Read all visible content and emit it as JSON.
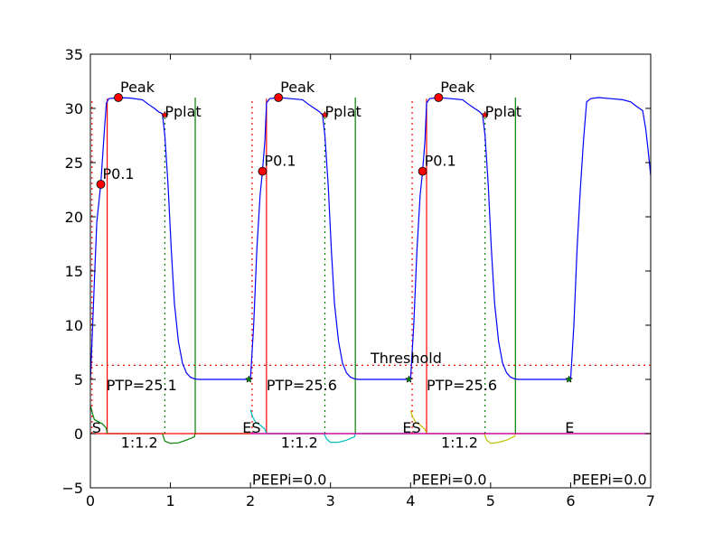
{
  "chart_data": {
    "type": "line",
    "xlim": [
      0,
      7
    ],
    "ylim": [
      -5,
      35
    ],
    "x_ticks": [
      0,
      1,
      2,
      3,
      4,
      5,
      6,
      7
    ],
    "y_ticks": [
      -5,
      0,
      5,
      10,
      15,
      20,
      25,
      30,
      35
    ],
    "grid": false,
    "threshold": {
      "y": 6.3,
      "label": "Threshold",
      "color": "#ff0000"
    },
    "colors": {
      "pressure": "#0000ff",
      "inspiration": "#ff0000",
      "expiration": "#008000",
      "flow_1": "#008000",
      "flow_2": "#00bfbf",
      "flow_3": "#bfbf00",
      "flow_zero_1": "#ff0000",
      "flow_zero_2": "#bf00bf",
      "marker_point": "#ff0000",
      "marker_star": "#008000"
    },
    "pressure": [
      [
        0.0,
        4.9
      ],
      [
        0.02,
        8.5
      ],
      [
        0.05,
        14.0
      ],
      [
        0.08,
        19.5
      ],
      [
        0.13,
        23.0
      ],
      [
        0.17,
        27.5
      ],
      [
        0.2,
        30.5
      ],
      [
        0.23,
        30.9
      ],
      [
        0.35,
        31.0
      ],
      [
        0.5,
        30.95
      ],
      [
        0.65,
        30.8
      ],
      [
        0.72,
        30.4
      ],
      [
        0.8,
        30.0
      ],
      [
        0.85,
        29.7
      ],
      [
        0.9,
        29.5
      ],
      [
        0.93,
        27.5
      ],
      [
        0.97,
        23.0
      ],
      [
        1.01,
        17.0
      ],
      [
        1.05,
        12.0
      ],
      [
        1.1,
        8.5
      ],
      [
        1.15,
        6.5
      ],
      [
        1.2,
        5.6
      ],
      [
        1.25,
        5.2
      ],
      [
        1.3,
        5.05
      ],
      [
        1.35,
        5.0
      ],
      [
        1.98,
        5.0
      ],
      [
        2.0,
        5.0
      ],
      [
        2.04,
        10.0
      ],
      [
        2.08,
        17.0
      ],
      [
        2.12,
        22.0
      ],
      [
        2.15,
        24.2
      ],
      [
        2.18,
        27.0
      ],
      [
        2.2,
        30.5
      ],
      [
        2.24,
        30.9
      ],
      [
        2.35,
        31.0
      ],
      [
        2.5,
        30.9
      ],
      [
        2.65,
        30.8
      ],
      [
        2.72,
        30.4
      ],
      [
        2.8,
        30.0
      ],
      [
        2.86,
        29.7
      ],
      [
        2.9,
        29.4
      ],
      [
        2.93,
        27.5
      ],
      [
        2.97,
        23.0
      ],
      [
        3.01,
        17.0
      ],
      [
        3.05,
        12.0
      ],
      [
        3.1,
        8.5
      ],
      [
        3.15,
        6.5
      ],
      [
        3.2,
        5.6
      ],
      [
        3.25,
        5.2
      ],
      [
        3.3,
        5.05
      ],
      [
        3.35,
        5.0
      ],
      [
        3.98,
        5.0
      ],
      [
        4.0,
        5.0
      ],
      [
        4.04,
        10.0
      ],
      [
        4.08,
        17.0
      ],
      [
        4.12,
        22.0
      ],
      [
        4.15,
        24.2
      ],
      [
        4.18,
        27.0
      ],
      [
        4.2,
        30.5
      ],
      [
        4.24,
        30.9
      ],
      [
        4.35,
        31.0
      ],
      [
        4.5,
        30.9
      ],
      [
        4.65,
        30.8
      ],
      [
        4.72,
        30.4
      ],
      [
        4.8,
        30.0
      ],
      [
        4.86,
        29.7
      ],
      [
        4.9,
        29.4
      ],
      [
        4.93,
        27.5
      ],
      [
        4.97,
        23.0
      ],
      [
        5.01,
        17.0
      ],
      [
        5.05,
        12.0
      ],
      [
        5.1,
        8.5
      ],
      [
        5.15,
        6.5
      ],
      [
        5.2,
        5.6
      ],
      [
        5.25,
        5.2
      ],
      [
        5.3,
        5.05
      ],
      [
        5.35,
        5.0
      ],
      [
        5.98,
        5.0
      ],
      [
        6.0,
        5.0
      ],
      [
        6.04,
        10.0
      ],
      [
        6.08,
        17.0
      ],
      [
        6.12,
        22.5
      ],
      [
        6.16,
        27.0
      ],
      [
        6.2,
        30.6
      ],
      [
        6.25,
        30.9
      ],
      [
        6.35,
        31.0
      ],
      [
        6.5,
        30.9
      ],
      [
        6.65,
        30.8
      ],
      [
        6.75,
        30.6
      ],
      [
        6.82,
        30.2
      ],
      [
        6.9,
        29.8
      ],
      [
        6.94,
        28.0
      ],
      [
        6.97,
        26.0
      ],
      [
        7.0,
        23.8
      ]
    ],
    "flows": [
      {
        "color_key": "flow_1",
        "points": [
          [
            0.0,
            2.6
          ],
          [
            0.02,
            2.0
          ],
          [
            0.05,
            1.3
          ],
          [
            0.1,
            1.1
          ],
          [
            0.15,
            0.9
          ],
          [
            0.2,
            0.5
          ],
          [
            0.21,
            0.0
          ],
          [
            0.9,
            0.0
          ],
          [
            0.93,
            -0.7
          ],
          [
            1.0,
            -0.9
          ],
          [
            1.1,
            -0.85
          ],
          [
            1.2,
            -0.6
          ],
          [
            1.3,
            -0.3
          ],
          [
            1.31,
            0.0
          ],
          [
            2.0,
            0.0
          ]
        ]
      },
      {
        "color_key": "flow_2",
        "points": [
          [
            2.0,
            2.2
          ],
          [
            2.03,
            1.5
          ],
          [
            2.07,
            1.0
          ],
          [
            2.12,
            0.8
          ],
          [
            2.18,
            0.4
          ],
          [
            2.2,
            0.0
          ],
          [
            2.92,
            0.0
          ],
          [
            2.95,
            -0.5
          ],
          [
            3.0,
            -0.8
          ],
          [
            3.1,
            -0.8
          ],
          [
            3.2,
            -0.6
          ],
          [
            3.3,
            -0.3
          ],
          [
            3.31,
            0.0
          ],
          [
            4.0,
            0.0
          ]
        ]
      },
      {
        "color_key": "flow_3",
        "points": [
          [
            4.0,
            2.1
          ],
          [
            4.03,
            1.5
          ],
          [
            4.07,
            1.0
          ],
          [
            4.12,
            0.8
          ],
          [
            4.18,
            0.4
          ],
          [
            4.2,
            0.0
          ],
          [
            4.92,
            0.0
          ],
          [
            4.95,
            -0.6
          ],
          [
            5.0,
            -0.9
          ],
          [
            5.1,
            -0.8
          ],
          [
            5.2,
            -0.6
          ],
          [
            5.3,
            -0.25
          ],
          [
            5.31,
            0.0
          ],
          [
            6.0,
            0.0
          ]
        ]
      },
      {
        "color_key": "flow_zero_1",
        "points": [
          [
            0.0,
            0.0
          ],
          [
            7.0,
            0.0
          ]
        ]
      },
      {
        "color_key": "flow_zero_2",
        "points": [
          [
            2.0,
            0.0
          ],
          [
            7.0,
            0.0
          ]
        ]
      }
    ],
    "insp_lines": [
      {
        "x": 0.02,
        "y_from": 0,
        "y_to": 30.9,
        "style": "dotted"
      },
      {
        "x": 0.21,
        "y_from": 0,
        "y_to": 30.9,
        "style": "solid"
      },
      {
        "x": 2.02,
        "y_from": 0,
        "y_to": 30.9,
        "style": "dotted"
      },
      {
        "x": 2.2,
        "y_from": 0,
        "y_to": 30.9,
        "style": "solid"
      },
      {
        "x": 4.02,
        "y_from": 0,
        "y_to": 30.9,
        "style": "dotted"
      },
      {
        "x": 4.2,
        "y_from": 0,
        "y_to": 30.9,
        "style": "solid"
      }
    ],
    "exp_lines": [
      {
        "x": 0.93,
        "y_from": 0,
        "y_to": 29.5,
        "style": "dotted"
      },
      {
        "x": 1.31,
        "y_from": 0,
        "y_to": 31.0,
        "style": "solid"
      },
      {
        "x": 2.93,
        "y_from": 0,
        "y_to": 29.4,
        "style": "dotted"
      },
      {
        "x": 3.31,
        "y_from": 0,
        "y_to": 31.0,
        "style": "solid"
      },
      {
        "x": 4.93,
        "y_from": 0,
        "y_to": 29.4,
        "style": "dotted"
      },
      {
        "x": 5.31,
        "y_from": 0,
        "y_to": 31.0,
        "style": "solid"
      }
    ],
    "point_markers": [
      {
        "x": 0.13,
        "y": 23.0,
        "label": "P0.1"
      },
      {
        "x": 0.35,
        "y": 31.0,
        "label": "Peak"
      },
      {
        "x": 2.15,
        "y": 24.2,
        "label": "P0.1"
      },
      {
        "x": 2.35,
        "y": 31.0,
        "label": "Peak"
      },
      {
        "x": 4.15,
        "y": 24.2,
        "label": "P0.1"
      },
      {
        "x": 4.35,
        "y": 31.0,
        "label": "Peak"
      }
    ],
    "pplat_markers": [
      {
        "x": 0.93,
        "y": 29.4,
        "label": "Pplat"
      },
      {
        "x": 2.93,
        "y": 29.4,
        "label": "Pplat"
      },
      {
        "x": 4.93,
        "y": 29.4,
        "label": "Pplat"
      }
    ],
    "star_markers": [
      {
        "x": 1.98,
        "y": 5.0
      },
      {
        "x": 3.98,
        "y": 5.0
      },
      {
        "x": 5.98,
        "y": 5.0
      }
    ],
    "annotations": [
      {
        "x": 0.2,
        "y": 4.0,
        "text": "PTP=25.1"
      },
      {
        "x": 2.2,
        "y": 4.0,
        "text": "PTP=25.6"
      },
      {
        "x": 4.2,
        "y": 4.0,
        "text": "PTP=25.6"
      },
      {
        "x": 0.02,
        "y": 0.1,
        "text": "S"
      },
      {
        "x": 1.9,
        "y": 0.1,
        "text": "ES"
      },
      {
        "x": 3.9,
        "y": 0.1,
        "text": "ES"
      },
      {
        "x": 5.93,
        "y": 0.1,
        "text": "E"
      },
      {
        "x": 0.38,
        "y": -1.3,
        "text": "1:1.2"
      },
      {
        "x": 2.38,
        "y": -1.3,
        "text": "1:1.2"
      },
      {
        "x": 4.38,
        "y": -1.3,
        "text": "1:1.2"
      },
      {
        "x": 2.02,
        "y": -4.7,
        "text": "PEEPi=0.0"
      },
      {
        "x": 4.02,
        "y": -4.7,
        "text": "PEEPi=0.0"
      },
      {
        "x": 6.02,
        "y": -4.7,
        "text": "PEEPi=0.0"
      },
      {
        "x": 3.5,
        "y": 6.5,
        "text": "Threshold"
      }
    ]
  }
}
